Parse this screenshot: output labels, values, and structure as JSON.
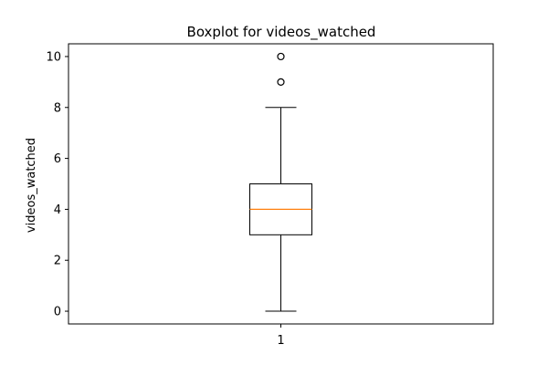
{
  "chart_data": {
    "type": "box",
    "title": "Boxplot for videos_watched",
    "xlabel": "",
    "ylabel": "videos_watched",
    "categories": [
      "1"
    ],
    "ylim": [
      -0.5,
      10.5
    ],
    "yticks": [
      0,
      2,
      4,
      6,
      8,
      10
    ],
    "grid": false,
    "boxes": [
      {
        "label": "1",
        "whisker_low": 0,
        "q1": 3,
        "median": 4,
        "q3": 5,
        "whisker_high": 8,
        "outliers": [
          9,
          10
        ]
      }
    ],
    "colors": {
      "box": "#000000",
      "median": "#ff7f0e",
      "whisker": "#000000",
      "outlier": "#000000"
    }
  }
}
